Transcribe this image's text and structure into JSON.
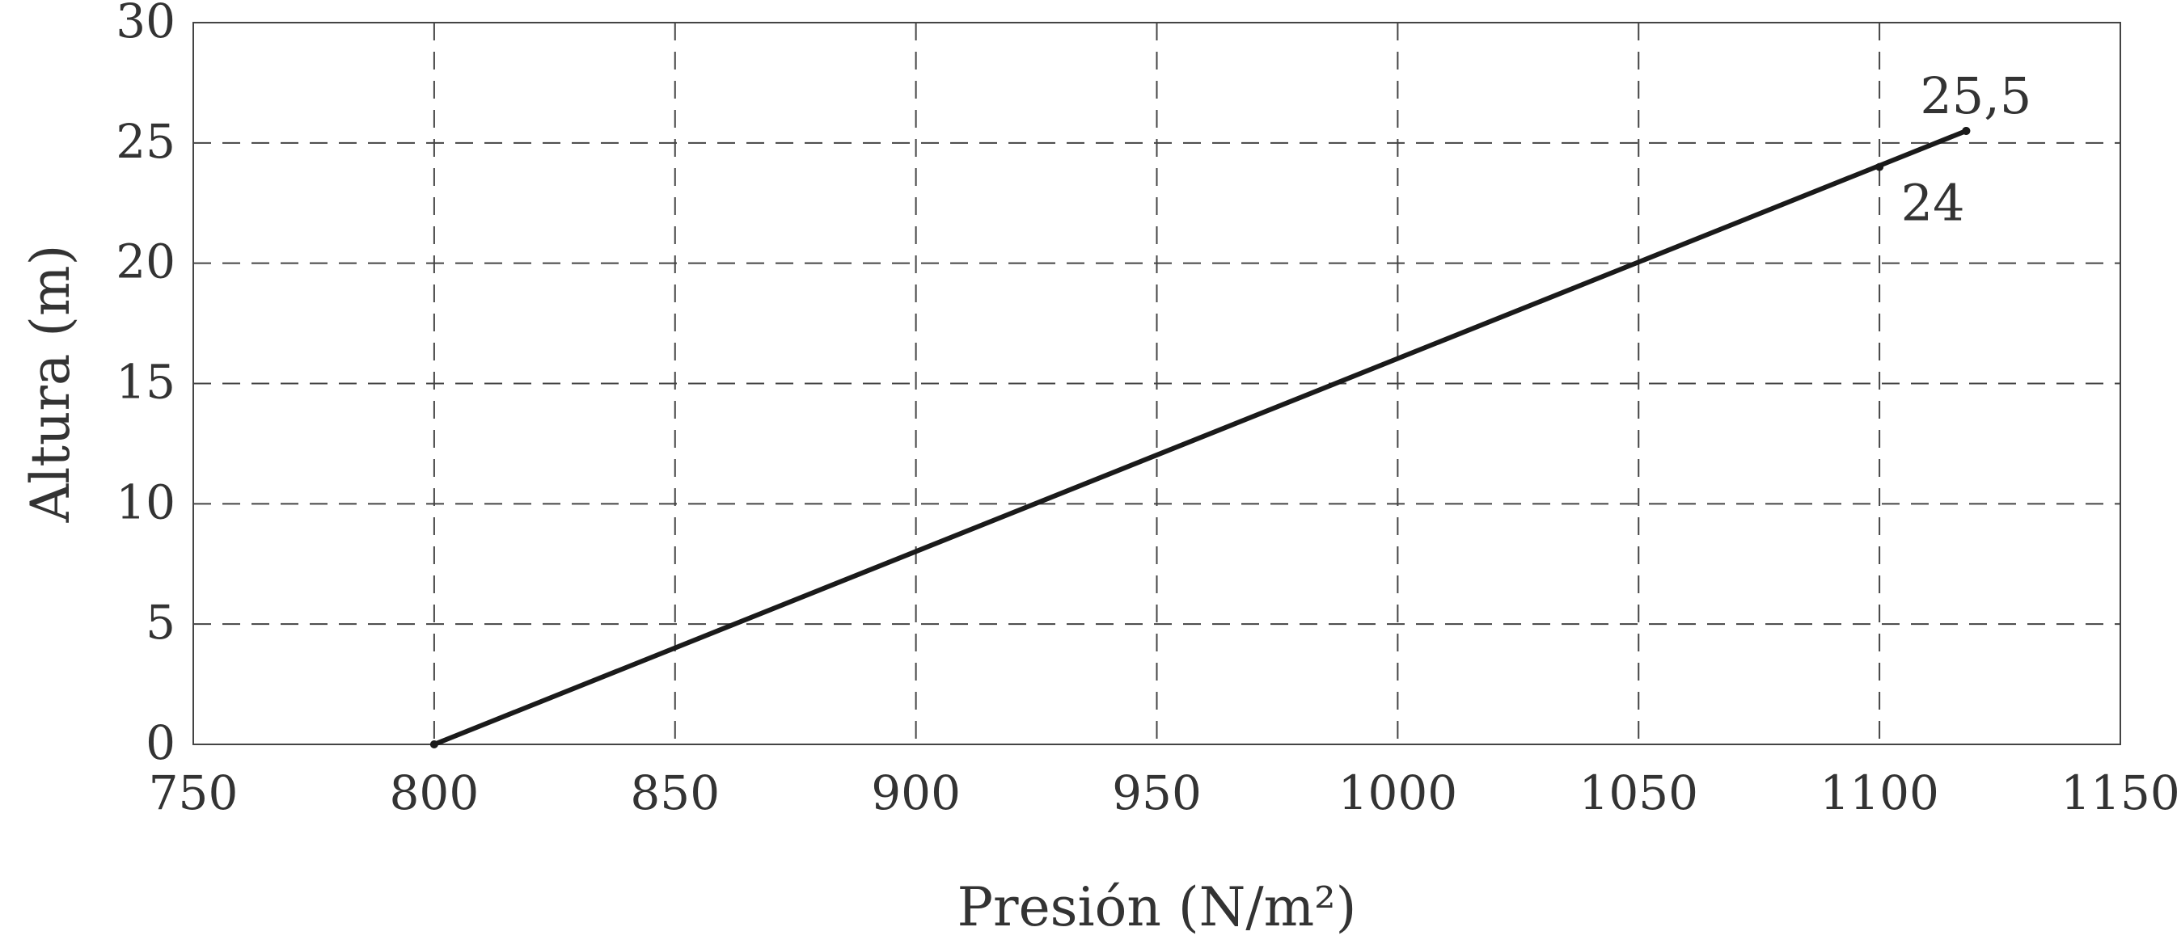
{
  "chart_data": {
    "type": "line",
    "xlabel": "Presión (N/m²)",
    "ylabel": "Altura (m)",
    "xlim": [
      750,
      1150
    ],
    "ylim": [
      0,
      30
    ],
    "xticks": [
      750,
      800,
      850,
      900,
      950,
      1000,
      1050,
      1100,
      1150
    ],
    "yticks": [
      0,
      5,
      10,
      15,
      20,
      25,
      30
    ],
    "x_tick_labels": [
      "750",
      "800",
      "850",
      "900",
      "950",
      "1000",
      "1050",
      "1100",
      "1150"
    ],
    "y_tick_labels": [
      "0",
      "5",
      "10",
      "15",
      "20",
      "25",
      "30"
    ],
    "grid": true,
    "series": [
      {
        "color": "#1a1a1a",
        "points": [
          {
            "x": 800,
            "y": 0
          },
          {
            "x": 1118,
            "y": 25.5
          }
        ]
      }
    ],
    "annotations": [
      {
        "text": "25,5",
        "x": 1118,
        "y": 25.5,
        "anchor": "above-left"
      },
      {
        "text": "24",
        "x": 1100,
        "y": 24,
        "anchor": "below-right"
      }
    ]
  }
}
